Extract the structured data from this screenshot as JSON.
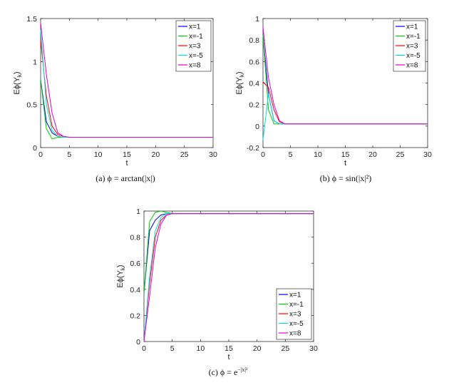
{
  "chart_data": [
    {
      "type": "line",
      "caption": "(a)  ϕ = arctan(|x|)",
      "xlabel": "t",
      "ylabel": "Eϕ(Y",
      "ylabel_sub": "k",
      "ylabel_close": ")",
      "xlim": [
        0,
        30
      ],
      "ylim": [
        0,
        1.5
      ],
      "xticks": [
        "0",
        "5",
        "10",
        "15",
        "20",
        "25",
        "30"
      ],
      "yticks": [
        "0",
        "0.5",
        "1",
        "1.5"
      ],
      "legend_position": "top-right",
      "x": [
        0,
        1,
        2,
        3,
        4,
        5,
        6,
        8,
        10,
        12,
        15,
        20,
        25,
        30
      ],
      "series": [
        {
          "name": "x=1",
          "color": "#0000ff",
          "values": [
            0.79,
            0.3,
            0.17,
            0.13,
            0.12,
            0.12,
            0.12,
            0.12,
            0.12,
            0.12,
            0.12,
            0.12,
            0.12,
            0.12
          ]
        },
        {
          "name": "x=-1",
          "color": "#00cc00",
          "values": [
            0.79,
            0.22,
            0.1,
            0.12,
            0.12,
            0.12,
            0.12,
            0.12,
            0.12,
            0.12,
            0.12,
            0.12,
            0.12,
            0.12
          ]
        },
        {
          "name": "x=3",
          "color": "#ff0000",
          "values": [
            1.25,
            0.6,
            0.25,
            0.15,
            0.13,
            0.12,
            0.12,
            0.12,
            0.12,
            0.12,
            0.12,
            0.12,
            0.12,
            0.12
          ]
        },
        {
          "name": "x=-5",
          "color": "#00dddd",
          "values": [
            1.37,
            0.5,
            0.2,
            0.13,
            0.12,
            0.12,
            0.12,
            0.12,
            0.12,
            0.12,
            0.12,
            0.12,
            0.12,
            0.12
          ]
        },
        {
          "name": "x=8",
          "color": "#dd00dd",
          "values": [
            1.45,
            0.85,
            0.4,
            0.17,
            0.13,
            0.12,
            0.12,
            0.12,
            0.12,
            0.12,
            0.12,
            0.12,
            0.12,
            0.12
          ]
        }
      ]
    },
    {
      "type": "line",
      "caption": "(b)  ϕ = sin(|x|²)",
      "xlabel": "t",
      "ylabel": "Eϕ(Y",
      "ylabel_sub": "k",
      "ylabel_close": ")",
      "xlim": [
        0,
        30
      ],
      "ylim": [
        -0.2,
        1
      ],
      "xticks": [
        "0",
        "5",
        "10",
        "15",
        "20",
        "25",
        "30"
      ],
      "yticks": [
        "-0.2",
        "0",
        "0.2",
        "0.4",
        "0.6",
        "0.8",
        "1"
      ],
      "legend_position": "top-right",
      "x": [
        0,
        1,
        2,
        3,
        4,
        5,
        6,
        8,
        10,
        15,
        20,
        25,
        30
      ],
      "series": [
        {
          "name": "x=1",
          "color": "#0000ff",
          "values": [
            0.84,
            0.3,
            0.05,
            0.02,
            0.02,
            0.02,
            0.02,
            0.02,
            0.02,
            0.02,
            0.02,
            0.02,
            0.02
          ]
        },
        {
          "name": "x=-1",
          "color": "#00cc00",
          "values": [
            0.84,
            0.15,
            0.02,
            0.02,
            0.02,
            0.02,
            0.02,
            0.02,
            0.02,
            0.02,
            0.02,
            0.02,
            0.02
          ]
        },
        {
          "name": "x=3",
          "color": "#ff0000",
          "values": [
            0.41,
            0.36,
            0.15,
            0.04,
            0.02,
            0.02,
            0.02,
            0.02,
            0.02,
            0.02,
            0.02,
            0.02,
            0.02
          ]
        },
        {
          "name": "x=-5",
          "color": "#00dddd",
          "values": [
            -0.13,
            0.3,
            0.05,
            0.02,
            0.02,
            0.02,
            0.02,
            0.02,
            0.02,
            0.02,
            0.02,
            0.02,
            0.02
          ]
        },
        {
          "name": "x=8",
          "color": "#dd00dd",
          "values": [
            0.92,
            0.45,
            0.2,
            0.05,
            0.02,
            0.02,
            0.02,
            0.02,
            0.02,
            0.02,
            0.02,
            0.02,
            0.02
          ]
        }
      ]
    },
    {
      "type": "line",
      "caption": "(c)  ϕ = e",
      "caption_sup": "−|x|²",
      "xlabel": "t",
      "ylabel": "Eϕ(Y",
      "ylabel_sub": "k",
      "ylabel_close": ")",
      "xlim": [
        0,
        30
      ],
      "ylim": [
        0,
        1
      ],
      "xticks": [
        "0",
        "5",
        "10",
        "15",
        "20",
        "25",
        "30"
      ],
      "yticks": [
        "0",
        "0.2",
        "0.4",
        "0.6",
        "0.8",
        "1"
      ],
      "legend_position": "bottom-right",
      "x": [
        0,
        1,
        2,
        3,
        4,
        5,
        6,
        8,
        10,
        15,
        20,
        25,
        30
      ],
      "series": [
        {
          "name": "x=1",
          "color": "#0000ff",
          "values": [
            0.37,
            0.85,
            0.93,
            0.97,
            0.98,
            0.98,
            0.98,
            0.98,
            0.98,
            0.98,
            0.98,
            0.98,
            0.98
          ]
        },
        {
          "name": "x=-1",
          "color": "#00cc00",
          "values": [
            0.37,
            0.92,
            0.99,
            1.0,
            0.99,
            0.98,
            0.98,
            0.98,
            0.98,
            0.98,
            0.98,
            0.98,
            0.98
          ]
        },
        {
          "name": "x=3",
          "color": "#ff0000",
          "values": [
            0.0,
            0.45,
            0.8,
            0.93,
            0.97,
            0.98,
            0.98,
            0.98,
            0.98,
            0.98,
            0.98,
            0.98,
            0.98
          ]
        },
        {
          "name": "x=-5",
          "color": "#00dddd",
          "values": [
            0.0,
            0.5,
            0.85,
            0.95,
            0.98,
            0.98,
            0.98,
            0.98,
            0.98,
            0.98,
            0.98,
            0.98,
            0.98
          ]
        },
        {
          "name": "x=8",
          "color": "#dd00dd",
          "values": [
            0.0,
            0.35,
            0.72,
            0.9,
            0.97,
            0.98,
            0.98,
            0.98,
            0.98,
            0.98,
            0.98,
            0.98,
            0.98
          ]
        }
      ]
    }
  ]
}
